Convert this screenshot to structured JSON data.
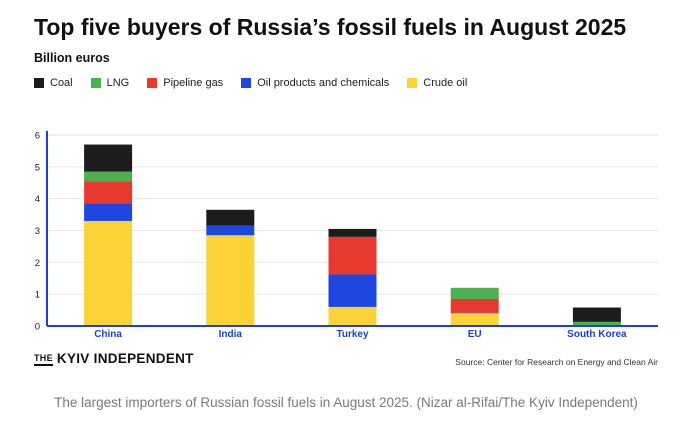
{
  "chart_data": {
    "type": "bar",
    "stacked": true,
    "title": "Top five buyers of Russia’s fossil fuels in August 2025",
    "ylabel": "Billion euros",
    "ylim": [
      0,
      6
    ],
    "yticks": [
      "0",
      "1",
      "2",
      "3",
      "4",
      "5",
      "6"
    ],
    "categories": [
      "China",
      "India",
      "Turkey",
      "EU",
      "South Korea"
    ],
    "legend_order": [
      "Coal",
      "LNG",
      "Pipeline gas",
      "Oil products and chemicals",
      "Crude oil"
    ],
    "series": [
      {
        "name": "Crude oil",
        "color": "#FCD337",
        "values": [
          3.3,
          2.85,
          0.6,
          0.4,
          0.0
        ]
      },
      {
        "name": "Oil products and chemicals",
        "color": "#1E47E0",
        "values": [
          0.55,
          0.3,
          1.02,
          0.02,
          0.0
        ]
      },
      {
        "name": "Pipeline gas",
        "color": "#E8392F",
        "values": [
          0.7,
          0.0,
          1.18,
          0.43,
          0.0
        ]
      },
      {
        "name": "LNG",
        "color": "#4CAF50",
        "values": [
          0.3,
          0.0,
          0.0,
          0.35,
          0.13
        ]
      },
      {
        "name": "Coal",
        "color": "#1C1C1C",
        "values": [
          0.85,
          0.5,
          0.25,
          0.0,
          0.45
        ]
      }
    ]
  },
  "footer": {
    "brand_the": "THE",
    "brand_name": "KYIV INDEPENDENT",
    "source": "Source:  Center for Research on Energy and Clean Air"
  },
  "caption": "The largest importers of Russian fossil fuels in August 2025. (Nizar al-Rifai/The Kyiv Independent)",
  "colors": {
    "axis": "#1E3FD6",
    "category_label": "#1E3FD6",
    "grid": "#e6e6e6"
  }
}
